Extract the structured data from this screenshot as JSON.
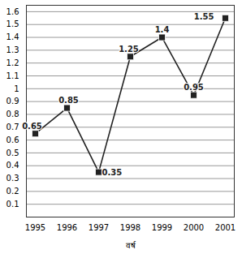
{
  "chart_data": {
    "type": "line",
    "x_label": "वर्ष",
    "categories": [
      "1995",
      "1996",
      "1997",
      "1998",
      "1999",
      "2000",
      "2001"
    ],
    "values": [
      0.65,
      0.85,
      0.35,
      1.25,
      1.4,
      0.95,
      1.55
    ],
    "color": "#222222",
    "marker": "square",
    "line_style": "solid",
    "data_labels": true,
    "ylim": [
      0,
      1.65
    ],
    "yticks": [
      0.1,
      0.2,
      0.3,
      0.4,
      0.5,
      0.6,
      0.7,
      0.8,
      0.9,
      1,
      1.1,
      1.2,
      1.3,
      1.4,
      1.5,
      1.6
    ],
    "grid": true
  }
}
